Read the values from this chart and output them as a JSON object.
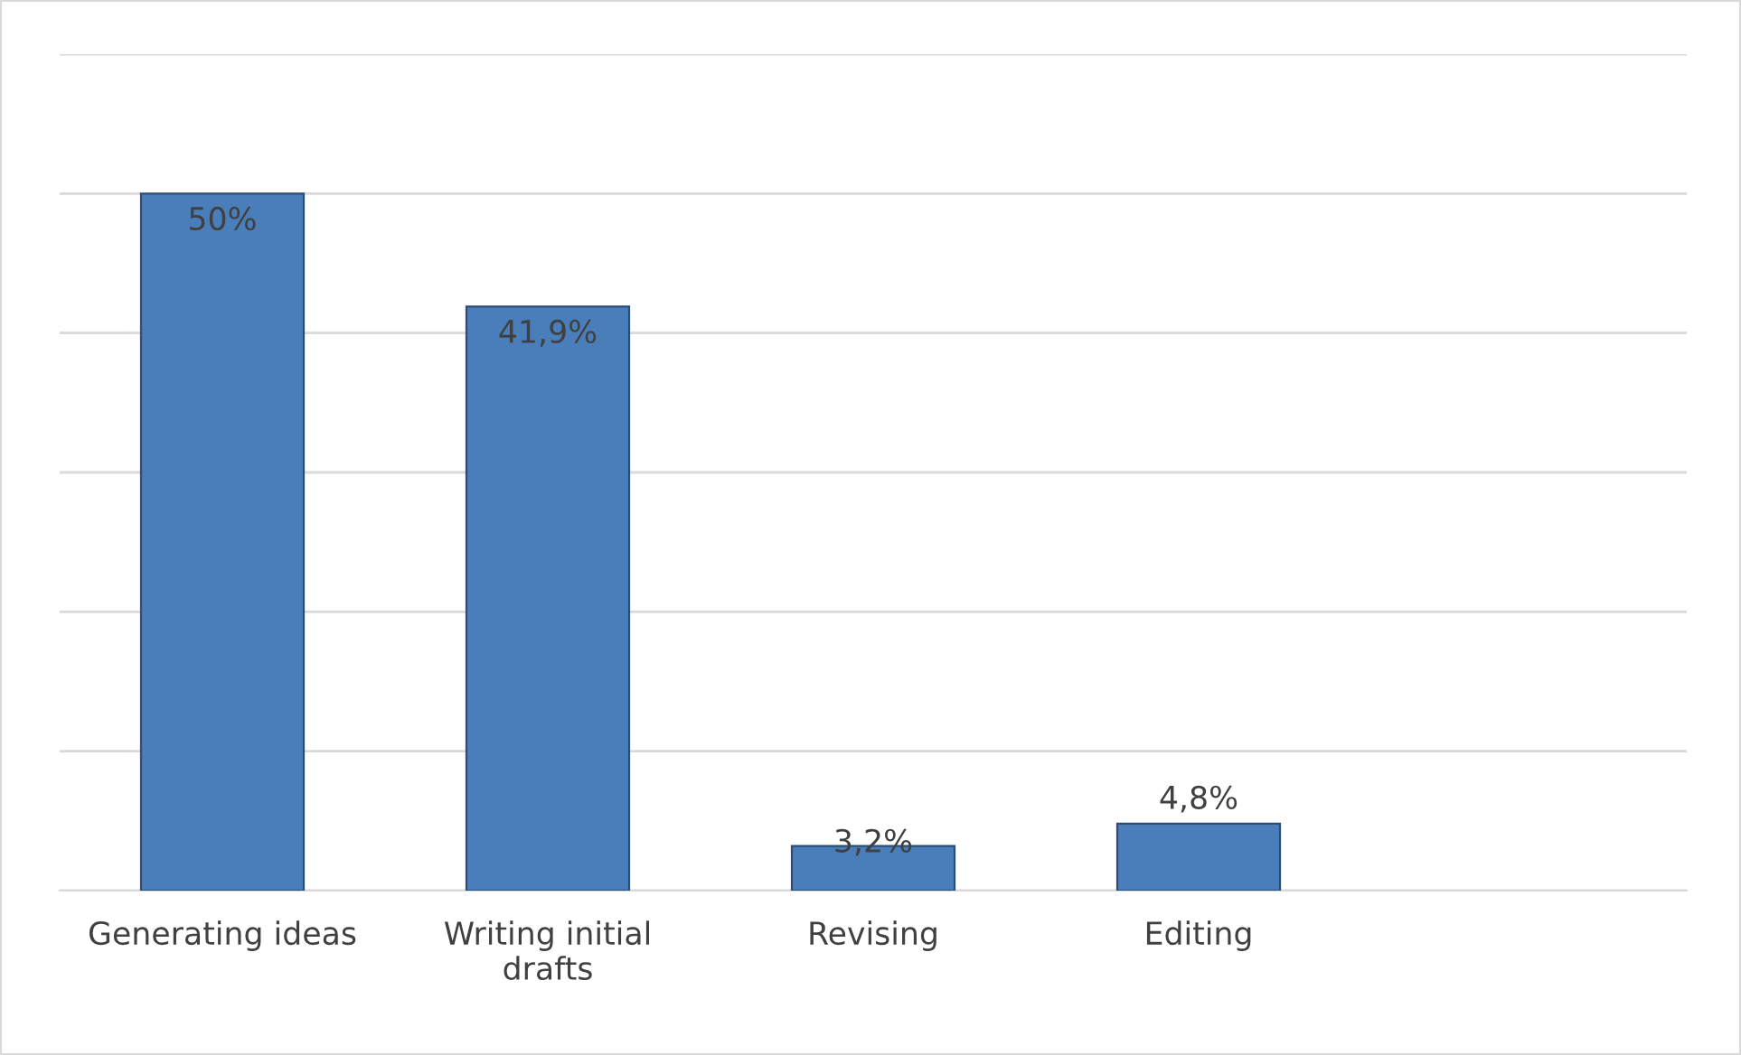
{
  "chart_data": {
    "type": "bar",
    "categories": [
      "Generating ideas",
      "Writing initial drafts",
      "Revising",
      "Editing",
      null
    ],
    "values": [
      50,
      41.9,
      3.2,
      4.8,
      null
    ],
    "value_labels": [
      "50%",
      "41,9%",
      "3,2%",
      "4,8%",
      null
    ],
    "color": "#4a7ebb",
    "ylim": [
      0,
      60
    ],
    "yticks": [
      {
        "value": 0,
        "label": null
      },
      {
        "value": 10,
        "label": null
      },
      {
        "value": 20,
        "label": null
      },
      {
        "value": 30,
        "label": null
      },
      {
        "value": 40,
        "label": null
      },
      {
        "value": 50,
        "label": null
      },
      {
        "value": 60,
        "label": null
      }
    ],
    "grid": "y",
    "tick_labels": "x"
  }
}
